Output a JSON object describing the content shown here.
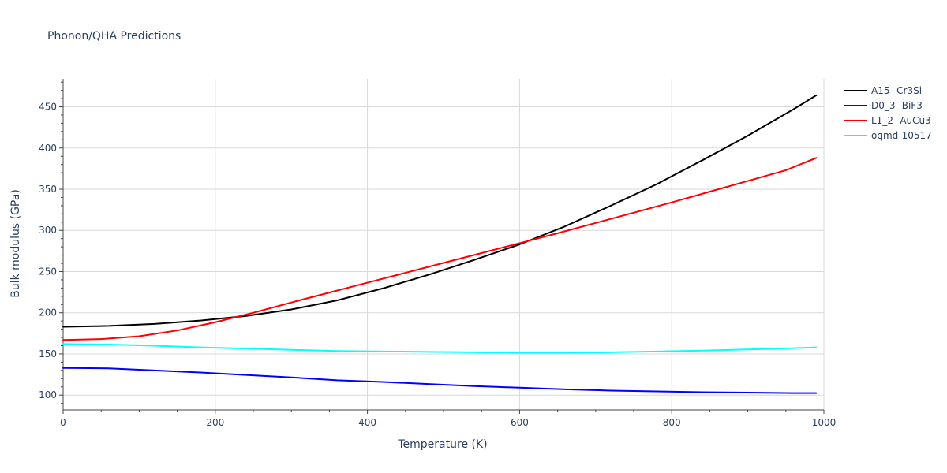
{
  "chart_data": {
    "type": "line",
    "title": "Phonon/QHA Predictions",
    "xlabel": "Temperature (K)",
    "ylabel": "Bulk modulus (GPa)",
    "xlim": [
      0,
      1000
    ],
    "ylim": [
      82,
      484
    ],
    "x_ticks": [
      0,
      200,
      400,
      600,
      800,
      1000
    ],
    "y_ticks": [
      100,
      150,
      200,
      250,
      300,
      350,
      400,
      450
    ],
    "grid": true,
    "legend_position": "top-right outside",
    "series": [
      {
        "name": "A15--Cr3Si",
        "color": "#000000",
        "x": [
          0,
          60,
          120,
          180,
          240,
          300,
          360,
          420,
          480,
          540,
          600,
          660,
          720,
          780,
          840,
          900,
          960,
          990
        ],
        "y": [
          183,
          184,
          186.5,
          190.5,
          196,
          204,
          215,
          229.5,
          246,
          264,
          283,
          305,
          330,
          356,
          385,
          415,
          447,
          464
        ]
      },
      {
        "name": "D0_3--BiF3",
        "color": "#0000ff",
        "x": [
          0,
          60,
          120,
          180,
          240,
          300,
          360,
          420,
          480,
          540,
          600,
          660,
          720,
          780,
          840,
          900,
          960,
          990
        ],
        "y": [
          133,
          132.5,
          130,
          127.5,
          124.5,
          121.5,
          118,
          116,
          113.5,
          111,
          109,
          107,
          105.5,
          104.5,
          103.5,
          103,
          102.5,
          102.5
        ]
      },
      {
        "name": "L1_2--AuCu3",
        "color": "#ff0000",
        "x": [
          0,
          50,
          100,
          150,
          200,
          250,
          300,
          350,
          400,
          450,
          500,
          550,
          600,
          650,
          700,
          750,
          800,
          850,
          900,
          950,
          990
        ],
        "y": [
          167,
          168,
          171.5,
          178.5,
          188.5,
          200,
          212.5,
          224.5,
          236.5,
          248.5,
          260.5,
          272.5,
          284.5,
          296.5,
          309,
          321.5,
          334,
          347,
          360,
          373,
          388
        ]
      },
      {
        "name": "oqmd-10517",
        "color": "#00ffff",
        "x": [
          0,
          60,
          120,
          180,
          240,
          300,
          360,
          420,
          480,
          540,
          600,
          660,
          720,
          780,
          840,
          900,
          960,
          990
        ],
        "y": [
          162,
          161.5,
          160,
          158,
          156.5,
          155,
          153.5,
          153,
          152.5,
          152,
          151.5,
          151.5,
          152,
          153,
          154,
          155.5,
          157,
          158
        ]
      }
    ]
  }
}
